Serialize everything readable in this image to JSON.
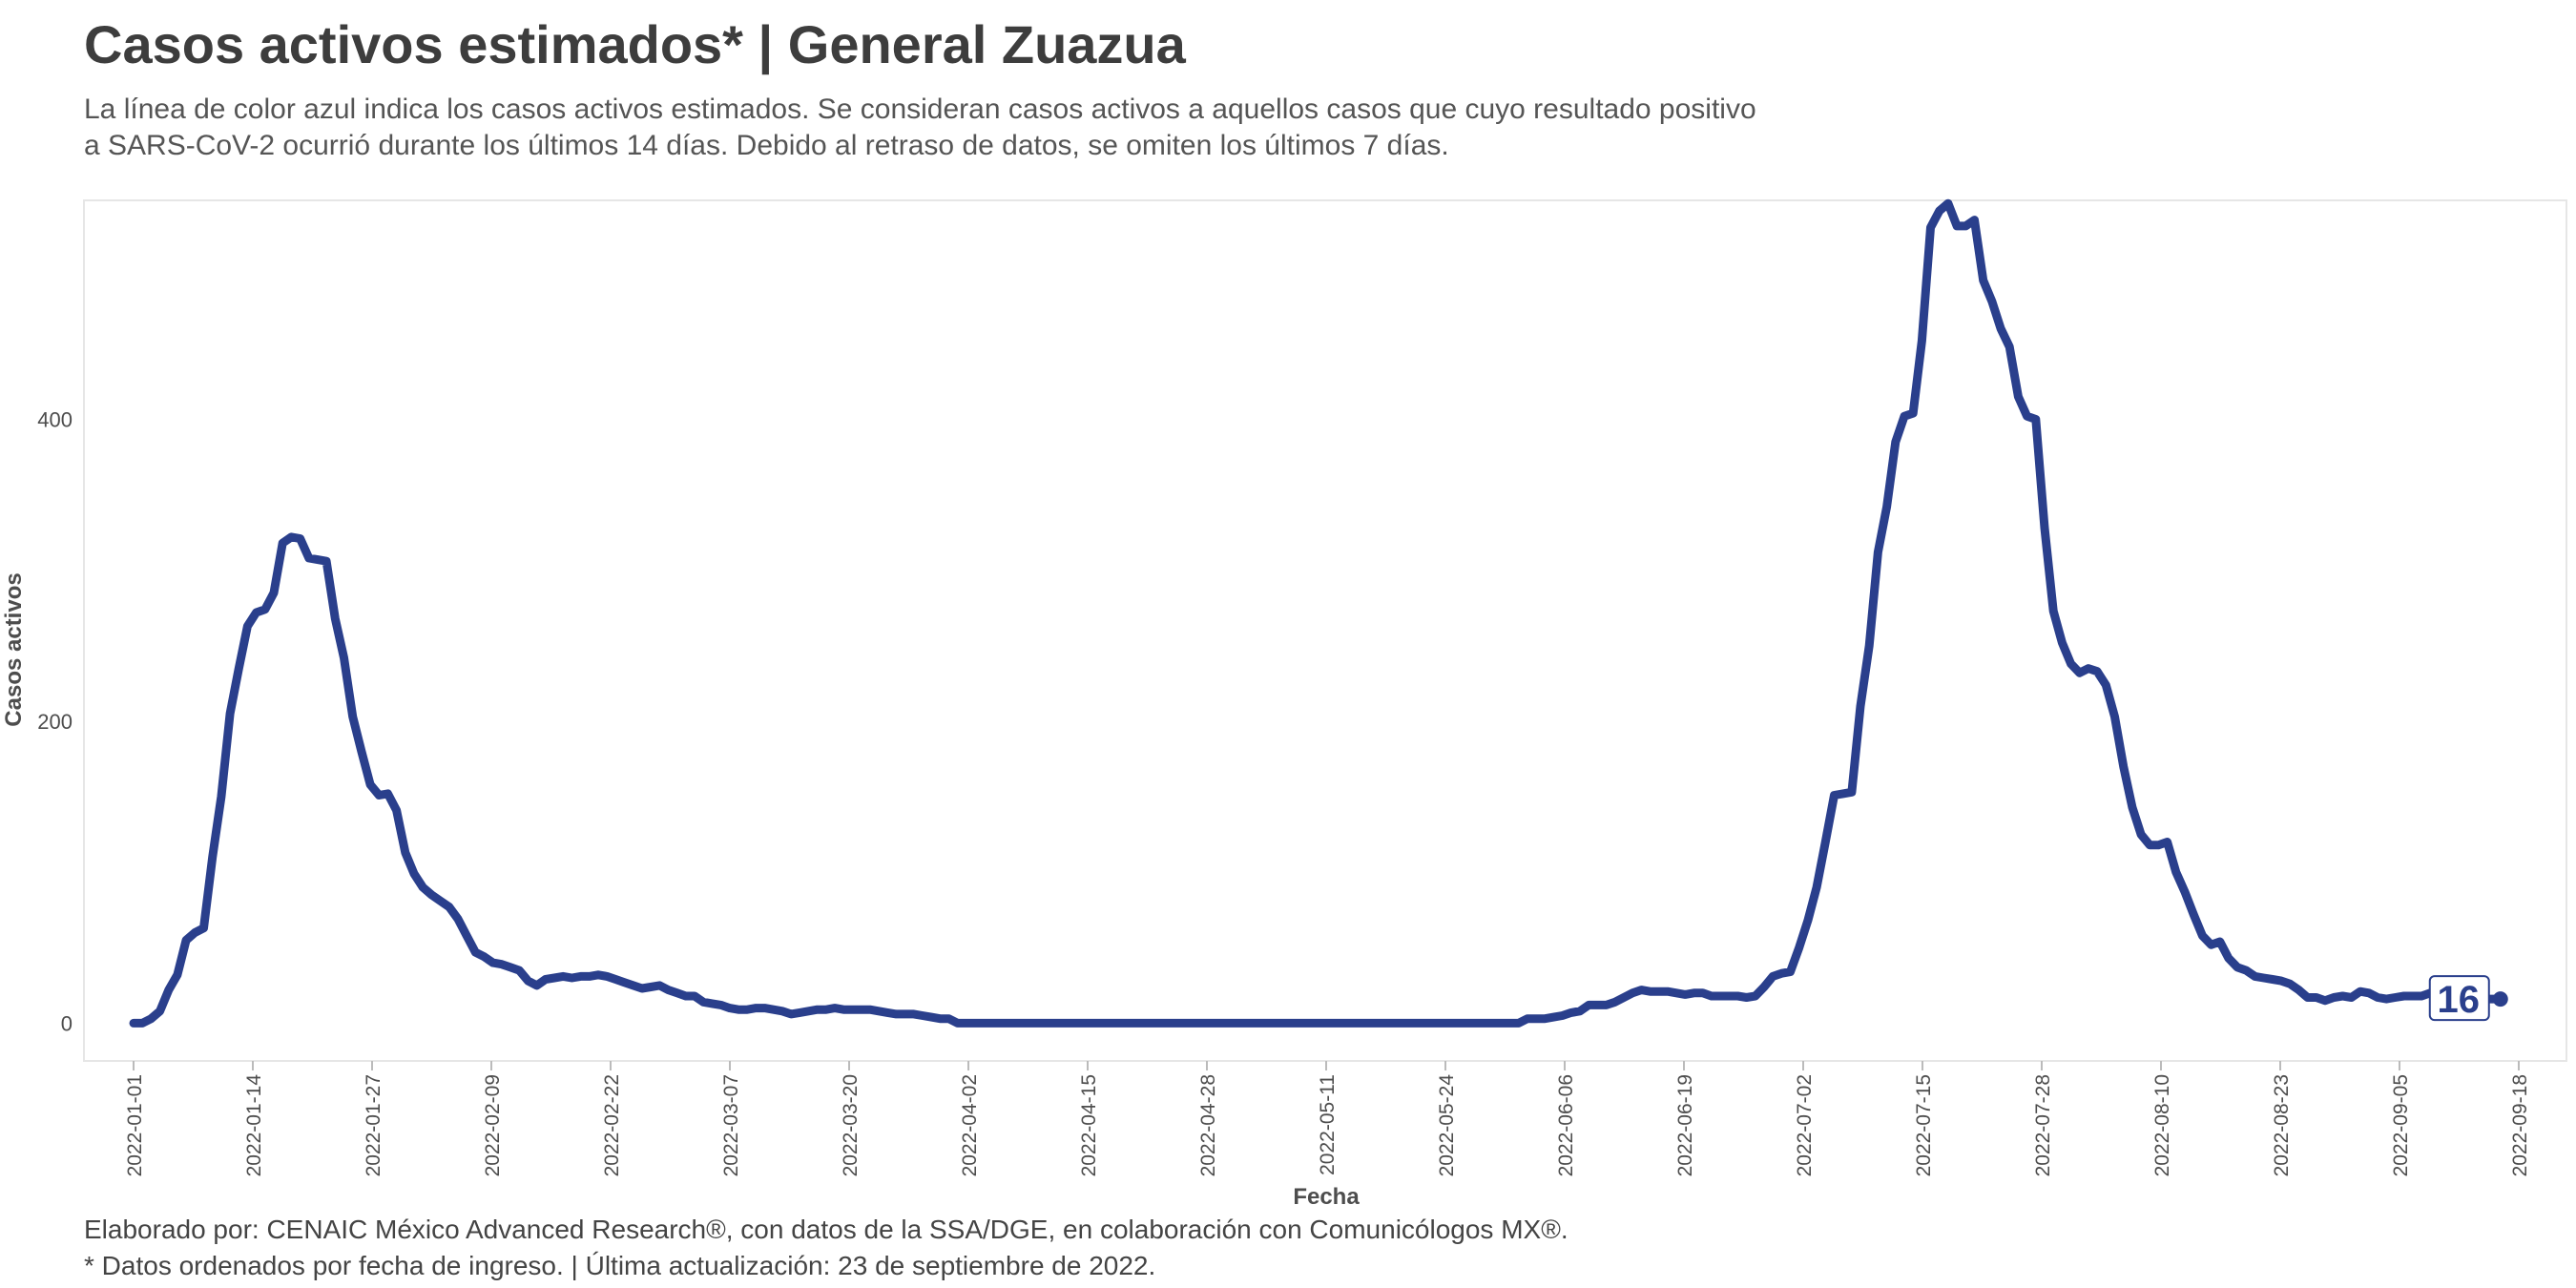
{
  "header": {
    "title": "Casos activos estimados* | General Zuazua",
    "subtitle_line1": "La línea de color azul indica los casos activos estimados. Se consideran casos activos a aquellos casos que cuyo resultado positivo",
    "subtitle_line2": "a SARS-CoV-2 ocurrió durante los últimos 14 días. Debido al retraso de datos, se omiten los últimos 7 días."
  },
  "caption": {
    "line1": "Elaborado por: CENAIC México Advanced Research®, con datos de la SSA/DGE, en colaboración con Comunicólogos MX®.",
    "line2": "* Datos ordenados por fecha de ingreso. | Última actualización: 23 de septiembre de 2022."
  },
  "colors": {
    "line": "#2a3f8c",
    "panel_border": "#e6e6e6",
    "axis_text": "#4d4d4d"
  },
  "chart_data": {
    "type": "line",
    "xlabel": "Fecha",
    "ylabel": "Casos activos",
    "x_start": "2022-01-01",
    "x_end": "2022-09-16",
    "xlim": [
      "2022-01-01",
      "2022-09-18"
    ],
    "ylim": [
      -25,
      545
    ],
    "yticks": [
      0,
      200,
      400
    ],
    "xticks": [
      "2022-01-01",
      "2022-01-14",
      "2022-01-27",
      "2022-02-09",
      "2022-02-22",
      "2022-03-07",
      "2022-03-20",
      "2022-04-02",
      "2022-04-15",
      "2022-04-28",
      "2022-05-11",
      "2022-05-24",
      "2022-06-06",
      "2022-06-19",
      "2022-07-02",
      "2022-07-15",
      "2022-07-28",
      "2022-08-10",
      "2022-08-23",
      "2022-09-05",
      "2022-09-18"
    ],
    "grid": false,
    "last_value_label": "16",
    "series": [
      {
        "values": [
          0,
          0,
          3,
          8,
          22,
          32,
          55,
          60,
          63,
          110,
          150,
          205,
          235,
          263,
          272,
          274,
          285,
          318,
          322,
          321,
          308,
          307,
          306,
          268,
          242,
          203,
          180,
          158,
          151,
          152,
          141,
          113,
          99,
          90,
          85,
          81,
          77,
          69,
          58,
          47,
          44,
          40,
          39,
          37,
          35,
          28,
          25,
          29,
          30,
          31,
          30,
          31,
          31,
          32,
          31,
          29,
          27,
          25,
          23,
          24,
          25,
          22,
          20,
          18,
          18,
          14,
          13,
          12,
          10,
          9,
          9,
          10,
          10,
          9,
          8,
          6,
          7,
          8,
          9,
          9,
          10,
          9,
          9,
          9,
          9,
          8,
          7,
          6,
          6,
          6,
          5,
          4,
          3,
          3,
          0,
          0,
          0,
          0,
          0,
          0,
          0,
          0,
          0,
          0,
          0,
          0,
          0,
          0,
          0,
          0,
          0,
          0,
          0,
          0,
          0,
          0,
          0,
          0,
          0,
          0,
          0,
          0,
          0,
          0,
          0,
          0,
          0,
          0,
          0,
          0,
          0,
          0,
          0,
          0,
          0,
          0,
          0,
          0,
          0,
          0,
          0,
          0,
          0,
          0,
          0,
          0,
          0,
          0,
          0,
          0,
          0,
          0,
          0,
          0,
          0,
          0,
          0,
          0,
          0,
          3,
          3,
          3,
          4,
          5,
          7,
          8,
          12,
          12,
          12,
          14,
          17,
          20,
          22,
          21,
          21,
          21,
          20,
          19,
          20,
          20,
          18,
          18,
          18,
          18,
          17,
          18,
          24,
          31,
          33,
          34,
          50,
          68,
          90,
          120,
          151,
          152,
          153,
          210,
          250,
          312,
          342,
          385,
          402,
          404,
          452,
          527,
          538,
          543,
          528,
          528,
          532,
          492,
          478,
          460,
          448,
          415,
          402,
          400,
          328,
          273,
          252,
          238,
          232,
          235,
          233,
          224,
          203,
          170,
          143,
          125,
          118,
          118,
          120,
          100,
          87,
          72,
          58,
          52,
          54,
          43,
          37,
          35,
          31,
          30,
          29,
          28,
          26,
          22,
          17,
          17,
          15,
          17,
          18,
          17,
          21,
          20,
          17,
          16,
          17,
          18,
          18,
          18,
          20,
          20,
          18,
          18,
          17,
          17,
          16,
          16,
          16
        ]
      }
    ]
  }
}
